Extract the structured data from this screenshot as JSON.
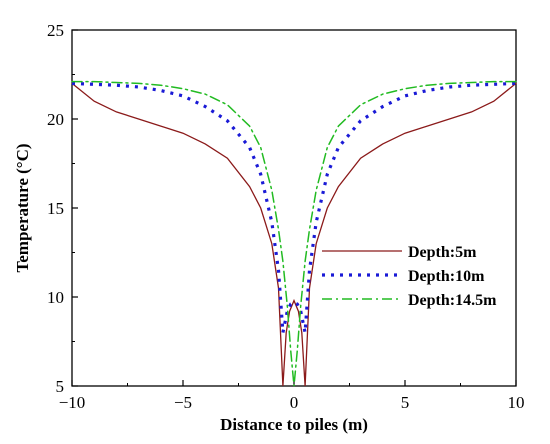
{
  "chart_data": {
    "type": "line",
    "xlabel": "Distance to piles (m)",
    "ylabel": "Temperature (°C)",
    "xlim": [
      -10,
      10
    ],
    "ylim": [
      5,
      25
    ],
    "xticks": [
      -10,
      -5,
      0,
      5,
      10
    ],
    "yticks": [
      5,
      10,
      15,
      20,
      25
    ],
    "grid": false,
    "legend_position": "center-right",
    "series": [
      {
        "name": "Depth:5m",
        "color": "#8b1a1a",
        "dash": "solid",
        "points": [
          [
            -10,
            22.0
          ],
          [
            -9,
            21.0
          ],
          [
            -8,
            20.4
          ],
          [
            -7,
            20.0
          ],
          [
            -6,
            19.6
          ],
          [
            -5,
            19.2
          ],
          [
            -4,
            18.6
          ],
          [
            -3,
            17.8
          ],
          [
            -2,
            16.2
          ],
          [
            -1.5,
            15.0
          ],
          [
            -1,
            13.0
          ],
          [
            -0.7,
            10.5
          ],
          [
            -0.5,
            5.0
          ],
          [
            -0.35,
            8.0
          ],
          [
            -0.2,
            9.2
          ],
          [
            0,
            9.8
          ],
          [
            0.2,
            9.2
          ],
          [
            0.35,
            8.0
          ],
          [
            0.5,
            5.0
          ],
          [
            0.7,
            10.5
          ],
          [
            1,
            13.0
          ],
          [
            1.5,
            15.0
          ],
          [
            2,
            16.2
          ],
          [
            3,
            17.8
          ],
          [
            4,
            18.6
          ],
          [
            5,
            19.2
          ],
          [
            6,
            19.6
          ],
          [
            7,
            20.0
          ],
          [
            8,
            20.4
          ],
          [
            9,
            21.0
          ],
          [
            10,
            22.0
          ]
        ]
      },
      {
        "name": "Depth:10m",
        "color": "#1a1ad6",
        "dash": "dotted",
        "points": [
          [
            -10,
            22.0
          ],
          [
            -9,
            21.95
          ],
          [
            -8,
            21.9
          ],
          [
            -7,
            21.8
          ],
          [
            -6,
            21.6
          ],
          [
            -5,
            21.3
          ],
          [
            -4,
            20.7
          ],
          [
            -3,
            19.9
          ],
          [
            -2,
            18.4
          ],
          [
            -1.5,
            16.9
          ],
          [
            -1,
            14.2
          ],
          [
            -0.7,
            11.5
          ],
          [
            -0.5,
            8.0
          ],
          [
            -0.3,
            9.2
          ],
          [
            -0.15,
            9.6
          ],
          [
            0,
            9.7
          ],
          [
            0.15,
            9.6
          ],
          [
            0.3,
            9.2
          ],
          [
            0.5,
            8.0
          ],
          [
            0.7,
            11.5
          ],
          [
            1,
            14.2
          ],
          [
            1.5,
            16.9
          ],
          [
            2,
            18.4
          ],
          [
            3,
            19.9
          ],
          [
            4,
            20.7
          ],
          [
            5,
            21.3
          ],
          [
            6,
            21.6
          ],
          [
            7,
            21.8
          ],
          [
            8,
            21.9
          ],
          [
            9,
            21.95
          ],
          [
            10,
            22.0
          ]
        ]
      },
      {
        "name": "Depth:14.5m",
        "color": "#22bb22",
        "dash": "dashdot",
        "points": [
          [
            -10,
            22.1
          ],
          [
            -9,
            22.1
          ],
          [
            -8,
            22.05
          ],
          [
            -7,
            22.0
          ],
          [
            -6,
            21.9
          ],
          [
            -5,
            21.7
          ],
          [
            -4,
            21.4
          ],
          [
            -3,
            20.8
          ],
          [
            -2,
            19.6
          ],
          [
            -1.5,
            18.4
          ],
          [
            -1,
            16.0
          ],
          [
            -0.7,
            13.8
          ],
          [
            -0.5,
            12.0
          ],
          [
            -0.3,
            9.5
          ],
          [
            -0.15,
            7.0
          ],
          [
            0,
            5.0
          ],
          [
            0.15,
            7.0
          ],
          [
            0.3,
            9.5
          ],
          [
            0.5,
            12.0
          ],
          [
            0.7,
            13.8
          ],
          [
            1,
            16.0
          ],
          [
            1.5,
            18.4
          ],
          [
            2,
            19.6
          ],
          [
            3,
            20.8
          ],
          [
            4,
            21.4
          ],
          [
            5,
            21.7
          ],
          [
            6,
            21.9
          ],
          [
            7,
            22.0
          ],
          [
            8,
            22.05
          ],
          [
            9,
            22.1
          ],
          [
            10,
            22.1
          ]
        ]
      }
    ]
  }
}
